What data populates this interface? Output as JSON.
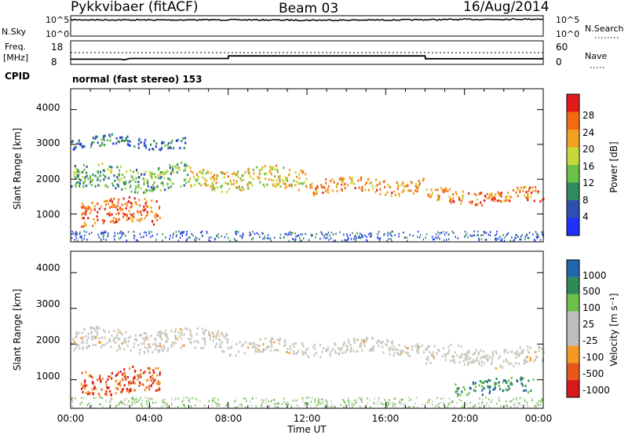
{
  "header": {
    "radar": "Pykkvibaer (fitACF)",
    "beam": "Beam 03",
    "date": "16/Aug/2014"
  },
  "noise_panel": {
    "left_label": "N.Sky",
    "left_ticks": [
      "10^5",
      "10^0"
    ],
    "right_label": "N.Search",
    "right_ticks": [
      "10^5",
      "10^0"
    ]
  },
  "freq_panel": {
    "left_label_1": "Freq.",
    "left_label_2": "[MHz]",
    "left_ticks": [
      "18",
      "8"
    ],
    "right_label": "Nave",
    "right_ticks": [
      "60",
      "0"
    ]
  },
  "cpid": {
    "label": "CPID",
    "mode": "normal (fast stereo) 153"
  },
  "x_axis": {
    "label": "Time UT",
    "ticks": [
      "00:00",
      "04:00",
      "08:00",
      "12:00",
      "16:00",
      "20:00",
      "00:00"
    ]
  },
  "power_panel": {
    "ylabel": "Slant Range [km]",
    "yticks": [
      "1000",
      "2000",
      "3000",
      "4000"
    ],
    "colorbar_label": "Power [dB]",
    "colorbar_ticks": [
      "28",
      "24",
      "20",
      "16",
      "12",
      "8",
      "4"
    ]
  },
  "velocity_panel": {
    "ylabel": "Slant Range [km]",
    "yticks": [
      "1000",
      "2000",
      "3000",
      "4000"
    ],
    "colorbar_label": "Velocity [m s⁻¹]",
    "colorbar_ticks": [
      "1000",
      "500",
      "100",
      "25",
      "-25",
      "-100",
      "-500",
      "-1000"
    ]
  },
  "colors": {
    "power_scale": [
      "#1f30ff",
      "#2f4fb0",
      "#2e8a5f",
      "#6cbf47",
      "#c8d83a",
      "#f4a020",
      "#f46a14",
      "#e31a1c"
    ],
    "velocity_scale": [
      "#d7191c",
      "#e8571b",
      "#f49a23",
      "#bdbdbd",
      "#bdbdbd",
      "#6cc04a",
      "#2e8b57",
      "#2166ac"
    ],
    "velocity_ground": "#c8c8c0"
  },
  "chart_data": [
    {
      "type": "line",
      "title": "N.Sky / N.Search",
      "x": [
        "00:00",
        "04:00",
        "08:00",
        "12:00",
        "16:00",
        "20:00",
        "24:00"
      ],
      "series": [
        {
          "name": "N.Sky",
          "values": [
            10000,
            9000,
            10000,
            8000,
            9000,
            12000,
            15000
          ]
        }
      ],
      "yscale": "log",
      "ylim": [
        1,
        100000
      ]
    },
    {
      "type": "line",
      "title": "Freq. [MHz]",
      "x": [
        "00:00",
        "02:30",
        "02:45",
        "03:00",
        "08:00",
        "08:01",
        "18:00",
        "18:01",
        "24:00"
      ],
      "series": [
        {
          "name": "Freq.",
          "values": [
            10.2,
            10.2,
            10.0,
            10.5,
            10.5,
            11.6,
            11.6,
            10.4,
            10.4
          ]
        }
      ],
      "ylim": [
        8,
        18
      ]
    },
    {
      "type": "heatmap",
      "title": "Power [dB]",
      "xlabel": "Time UT",
      "ylabel": "Slant Range [km]",
      "xlim": [
        0,
        24
      ],
      "ylim": [
        200,
        4600
      ],
      "zlim": [
        0,
        30
      ],
      "x_unit": "hours UT",
      "echo_bands": [
        {
          "t": [
            0.0,
            6.0
          ],
          "range": [
            1700,
            2400
          ],
          "power_db": 11
        },
        {
          "t": [
            6.0,
            12.0
          ],
          "range": [
            1700,
            2300
          ],
          "power_db": 18
        },
        {
          "t": [
            12.0,
            18.0
          ],
          "range": [
            1600,
            2000
          ],
          "power_db": 22
        },
        {
          "t": [
            18.0,
            24.0
          ],
          "range": [
            1300,
            1700
          ],
          "power_db": 24
        },
        {
          "t": [
            0.5,
            4.5
          ],
          "range": [
            700,
            1400
          ],
          "power_db": 26
        },
        {
          "t": [
            0.0,
            6.0
          ],
          "range": [
            2900,
            3200
          ],
          "power_db": 6
        }
      ]
    },
    {
      "type": "heatmap",
      "title": "Velocity [m s⁻¹]",
      "xlabel": "Time UT",
      "ylabel": "Slant Range [km]",
      "xlim": [
        0,
        24
      ],
      "ylim": [
        200,
        4600
      ],
      "zlim": [
        -1000,
        1000
      ],
      "x_unit": "hours UT",
      "echo_bands": [
        {
          "t": [
            0.0,
            8.0
          ],
          "range": [
            1800,
            2400
          ],
          "velocity": 0
        },
        {
          "t": [
            8.0,
            18.0
          ],
          "range": [
            1700,
            2100
          ],
          "velocity": 0
        },
        {
          "t": [
            18.0,
            24.0
          ],
          "range": [
            1400,
            1900
          ],
          "velocity": 0
        },
        {
          "t": [
            0.5,
            4.5
          ],
          "range": [
            600,
            1300
          ],
          "velocity": -300
        },
        {
          "t": [
            19.5,
            23.5
          ],
          "range": [
            600,
            1000
          ],
          "velocity": 200
        }
      ]
    }
  ]
}
